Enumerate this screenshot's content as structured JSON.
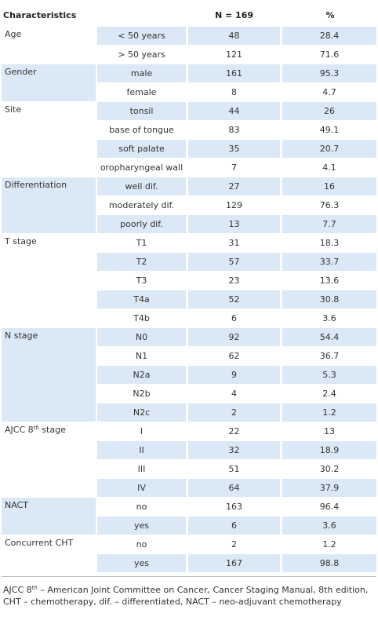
{
  "header": {
    "characteristics": "Characteristics",
    "n": "N = 169",
    "percent": "%"
  },
  "groups": [
    {
      "label": "Age",
      "rows": [
        {
          "sub": "< 50 years",
          "n": 48,
          "percent": 28.4
        },
        {
          "sub": "> 50 years",
          "n": 121,
          "percent": 71.6
        }
      ]
    },
    {
      "label": "Gender",
      "rows": [
        {
          "sub": "male",
          "n": 161,
          "percent": 95.3
        },
        {
          "sub": "female",
          "n": 8,
          "percent": 4.7
        }
      ]
    },
    {
      "label": "Site",
      "rows": [
        {
          "sub": "tonsil",
          "n": 44,
          "percent": 26
        },
        {
          "sub": "base of tongue",
          "n": 83,
          "percent": 49.1
        },
        {
          "sub": "soft palate",
          "n": 35,
          "percent": 20.7
        },
        {
          "sub": "oropharyngeal wall",
          "n": 7,
          "percent": 4.1
        }
      ]
    },
    {
      "label": "Differentiation",
      "rows": [
        {
          "sub": "well dif.",
          "n": 27,
          "percent": 16
        },
        {
          "sub": "moderately dif.",
          "n": 129,
          "percent": 76.3
        },
        {
          "sub": "poorly dif.",
          "n": 13,
          "percent": 7.7
        }
      ]
    },
    {
      "label": "T stage",
      "rows": [
        {
          "sub": "T1",
          "n": 31,
          "percent": 18.3
        },
        {
          "sub": "T2",
          "n": 57,
          "percent": 33.7
        },
        {
          "sub": "T3",
          "n": 23,
          "percent": 13.6
        },
        {
          "sub": "T4a",
          "n": 52,
          "percent": 30.8
        },
        {
          "sub": "T4b",
          "n": 6,
          "percent": 3.6
        }
      ]
    },
    {
      "label": "N stage",
      "rows": [
        {
          "sub": "N0",
          "n": 92,
          "percent": 54.4
        },
        {
          "sub": "N1",
          "n": 62,
          "percent": 36.7
        },
        {
          "sub": "N2a",
          "n": 9,
          "percent": 5.3
        },
        {
          "sub": "N2b",
          "n": 4,
          "percent": 2.4
        },
        {
          "sub": "N2c",
          "n": 2,
          "percent": 1.2
        }
      ]
    },
    {
      "label": "AJCC 8",
      "label_sup": "th",
      "label_after": " stage",
      "rows": [
        {
          "sub": "I",
          "n": 22,
          "percent": 13
        },
        {
          "sub": "II",
          "n": 32,
          "percent": 18.9
        },
        {
          "sub": "III",
          "n": 51,
          "percent": 30.2
        },
        {
          "sub": "IV",
          "n": 64,
          "percent": 37.9
        }
      ]
    },
    {
      "label": "NACT",
      "rows": [
        {
          "sub": "no",
          "n": 163,
          "percent": 96.4
        },
        {
          "sub": "yes",
          "n": 6,
          "percent": 3.6
        }
      ]
    },
    {
      "label": "Concurrent CHT",
      "rows": [
        {
          "sub": "no",
          "n": 2,
          "percent": 1.2
        },
        {
          "sub": "yes",
          "n": 167,
          "percent": 98.8
        }
      ]
    }
  ],
  "footnote": {
    "text": "AJCC 8",
    "sup": "th",
    "rest": " – American Joint Committee on Cancer, Cancer Staging Manual, 8th edition, CHT – chemotherapy, dif. – differentiated, NACT – neo-adjuvant chemotherapy"
  }
}
